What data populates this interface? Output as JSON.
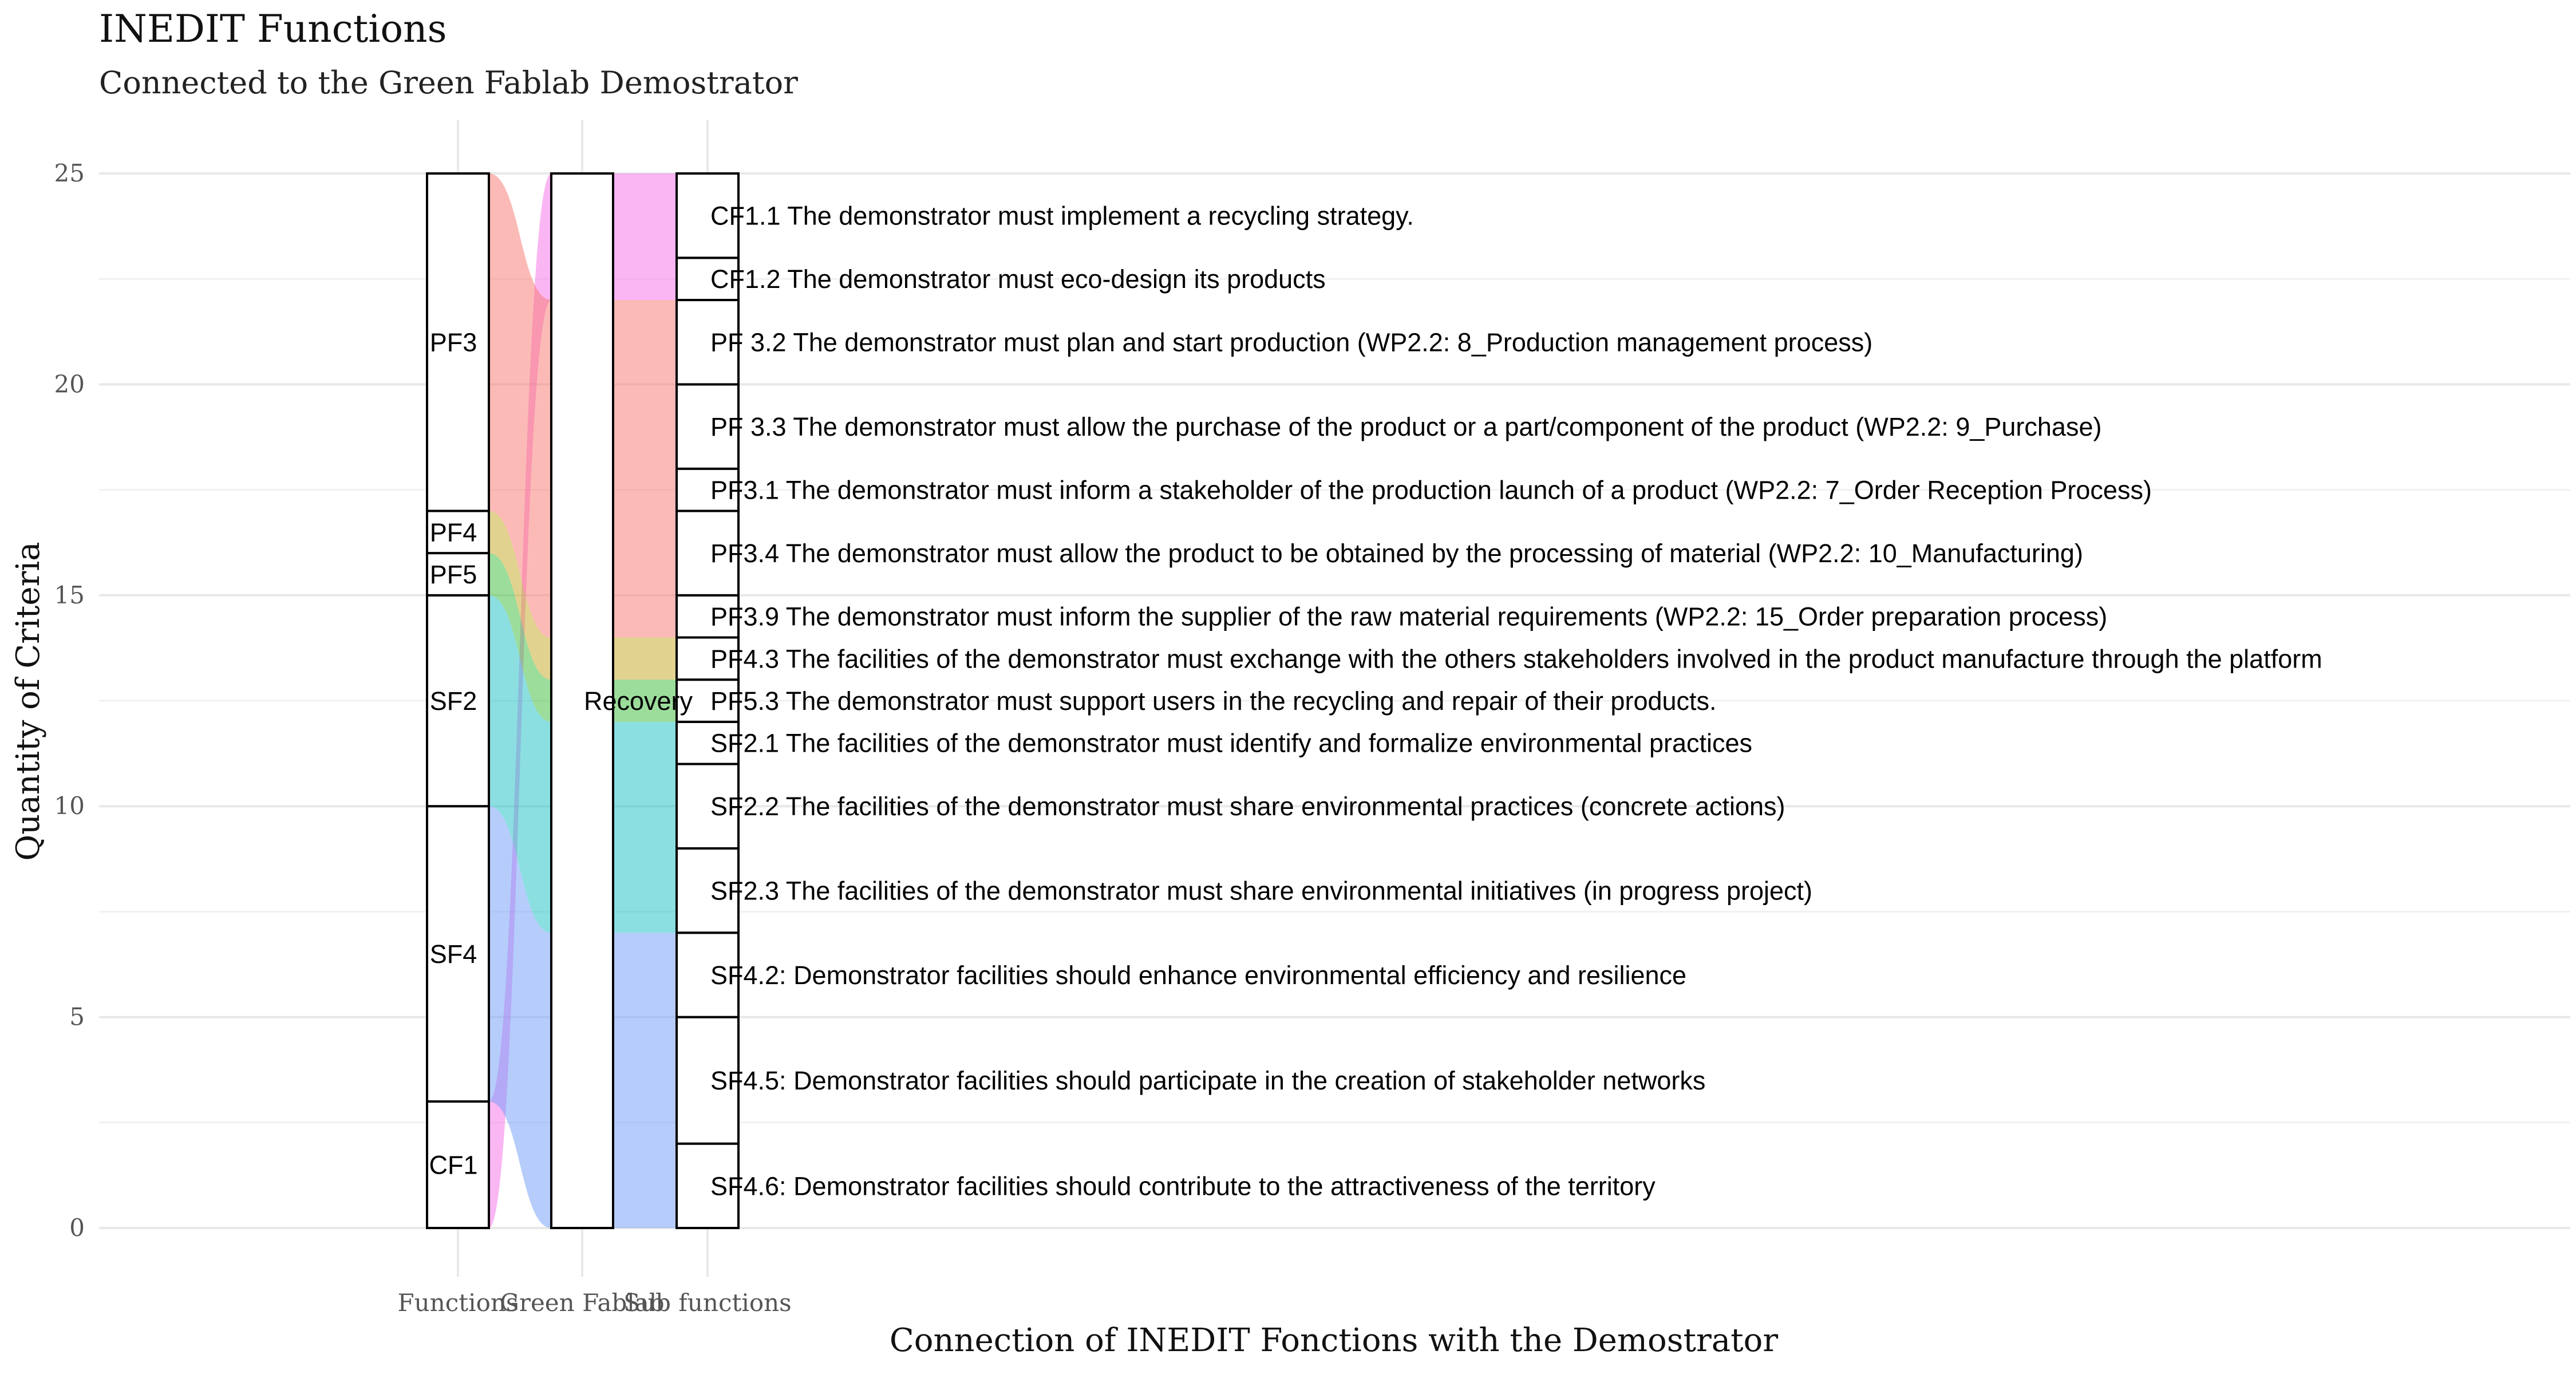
{
  "chart_data": {
    "type": "alluvial",
    "title": "INEDIT Functions",
    "subtitle": "Connected to the Green Fablab Demostrator",
    "xlabel": "Connection of INEDIT Fonctions with the Demostrator",
    "ylabel": "Quantity of Criteria",
    "ylim": [
      0,
      25
    ],
    "yticks": [
      0,
      5,
      10,
      15,
      20,
      25
    ],
    "grid": true,
    "axes": [
      "Functions",
      "Green Fablab",
      "Sub functions"
    ],
    "functions": [
      {
        "name": "CF1",
        "count": 3
      },
      {
        "name": "SF4",
        "count": 7
      },
      {
        "name": "SF2",
        "count": 5
      },
      {
        "name": "PF5",
        "count": 1
      },
      {
        "name": "PF4",
        "count": 1
      },
      {
        "name": "PF3",
        "count": 8
      }
    ],
    "demonstrator": [
      {
        "name": "Recovery",
        "count": 25
      }
    ],
    "sub_functions": [
      {
        "label": "SF4.6: Demonstrator facilities should contribute to the attractiveness of the territory",
        "count": 2,
        "group": "SF4"
      },
      {
        "label": "SF4.5: Demonstrator facilities should participate in the creation of stakeholder networks",
        "count": 3,
        "group": "SF4"
      },
      {
        "label": "SF4.2: Demonstrator facilities should enhance environmental efficiency and resilience",
        "count": 2,
        "group": "SF4"
      },
      {
        "label": "SF2.3 The facilities of the demonstrator must share environmental initiatives (in progress project)",
        "count": 2,
        "group": "SF2"
      },
      {
        "label": "SF2.2 The facilities of the demonstrator must share environmental practices (concrete actions)",
        "count": 2,
        "group": "SF2"
      },
      {
        "label": "SF2.1 The facilities of the demonstrator must identify and formalize environmental practices",
        "count": 1,
        "group": "SF2"
      },
      {
        "label": "PF5.3 The demonstrator must support users in the recycling and repair of their products.",
        "count": 1,
        "group": "PF5"
      },
      {
        "label": "PF4.3 The facilities of the demonstrator must exchange with the others stakeholders involved in the product manufacture through the platform",
        "count": 1,
        "group": "PF4"
      },
      {
        "label": "PF3.9 The demonstrator must inform the supplier of the raw material requirements (WP2.2: 15_Order preparation process)",
        "count": 1,
        "group": "PF3"
      },
      {
        "label": "PF3.4 The demonstrator must allow the product to be obtained by the processing of material (WP2.2: 10_Manufacturing)",
        "count": 2,
        "group": "PF3"
      },
      {
        "label": "PF3.1 The demonstrator must inform a stakeholder of the production launch of a product (WP2.2: 7_Order Reception Process)",
        "count": 1,
        "group": "PF3"
      },
      {
        "label": "PF 3.3 The demonstrator must allow the purchase of the product or a part/component of the product (WP2.2: 9_Purchase)",
        "count": 2,
        "group": "PF3"
      },
      {
        "label": "PF 3.2 The demonstrator must plan and start production (WP2.2: 8_Production management process)",
        "count": 2,
        "group": "PF3"
      },
      {
        "label": "CF1.2 The demonstrator must eco-design its products",
        "count": 1,
        "group": "CF1"
      },
      {
        "label": "CF1.1 The demonstrator must implement a recycling strategy.",
        "count": 2,
        "group": "CF1"
      }
    ],
    "colors": {
      "CF1": "#F56DE8",
      "PF3": "#F8766D",
      "PF4": "#C4A71F",
      "PF5": "#3ABB3A",
      "SF2": "#19C0C3",
      "SF4": "#6E9BF9"
    }
  }
}
